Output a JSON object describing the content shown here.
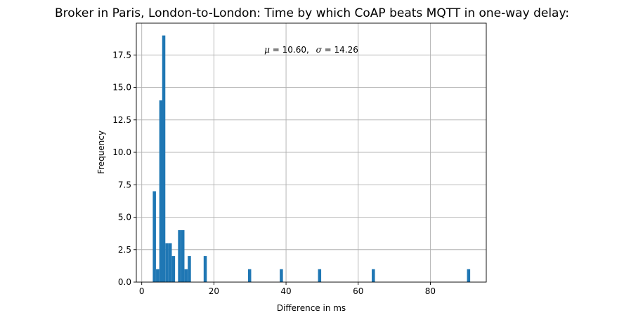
{
  "chart_data": {
    "type": "bar",
    "title": "Broker in Paris, London-to-London: Time by which CoAP beats MQTT in one-way delay:",
    "xlabel": "Difference in ms",
    "ylabel": "Frequency",
    "annotation": {
      "mu_symbol": "μ",
      "mu_value": "= 10.60,",
      "sigma_symbol": "σ",
      "sigma_value": "= 14.26"
    },
    "xlim": [
      -1.5,
      95.5
    ],
    "ylim": [
      0,
      19.95
    ],
    "xticks": [
      0,
      20,
      40,
      60,
      80
    ],
    "yticks": [
      0.0,
      2.5,
      5.0,
      7.5,
      10.0,
      12.5,
      15.0,
      17.5
    ],
    "grid": true,
    "bin_width": 0.88,
    "bars": [
      {
        "x": 3.5,
        "y": 7
      },
      {
        "x": 4.4,
        "y": 1
      },
      {
        "x": 5.3,
        "y": 14
      },
      {
        "x": 6.1,
        "y": 19
      },
      {
        "x": 7.0,
        "y": 3
      },
      {
        "x": 7.9,
        "y": 3
      },
      {
        "x": 8.8,
        "y": 2
      },
      {
        "x": 10.5,
        "y": 4
      },
      {
        "x": 11.4,
        "y": 4
      },
      {
        "x": 12.3,
        "y": 1
      },
      {
        "x": 13.2,
        "y": 2
      },
      {
        "x": 17.6,
        "y": 2
      },
      {
        "x": 29.9,
        "y": 1
      },
      {
        "x": 38.7,
        "y": 1
      },
      {
        "x": 49.3,
        "y": 1
      },
      {
        "x": 64.2,
        "y": 1
      },
      {
        "x": 90.6,
        "y": 1
      }
    ]
  }
}
